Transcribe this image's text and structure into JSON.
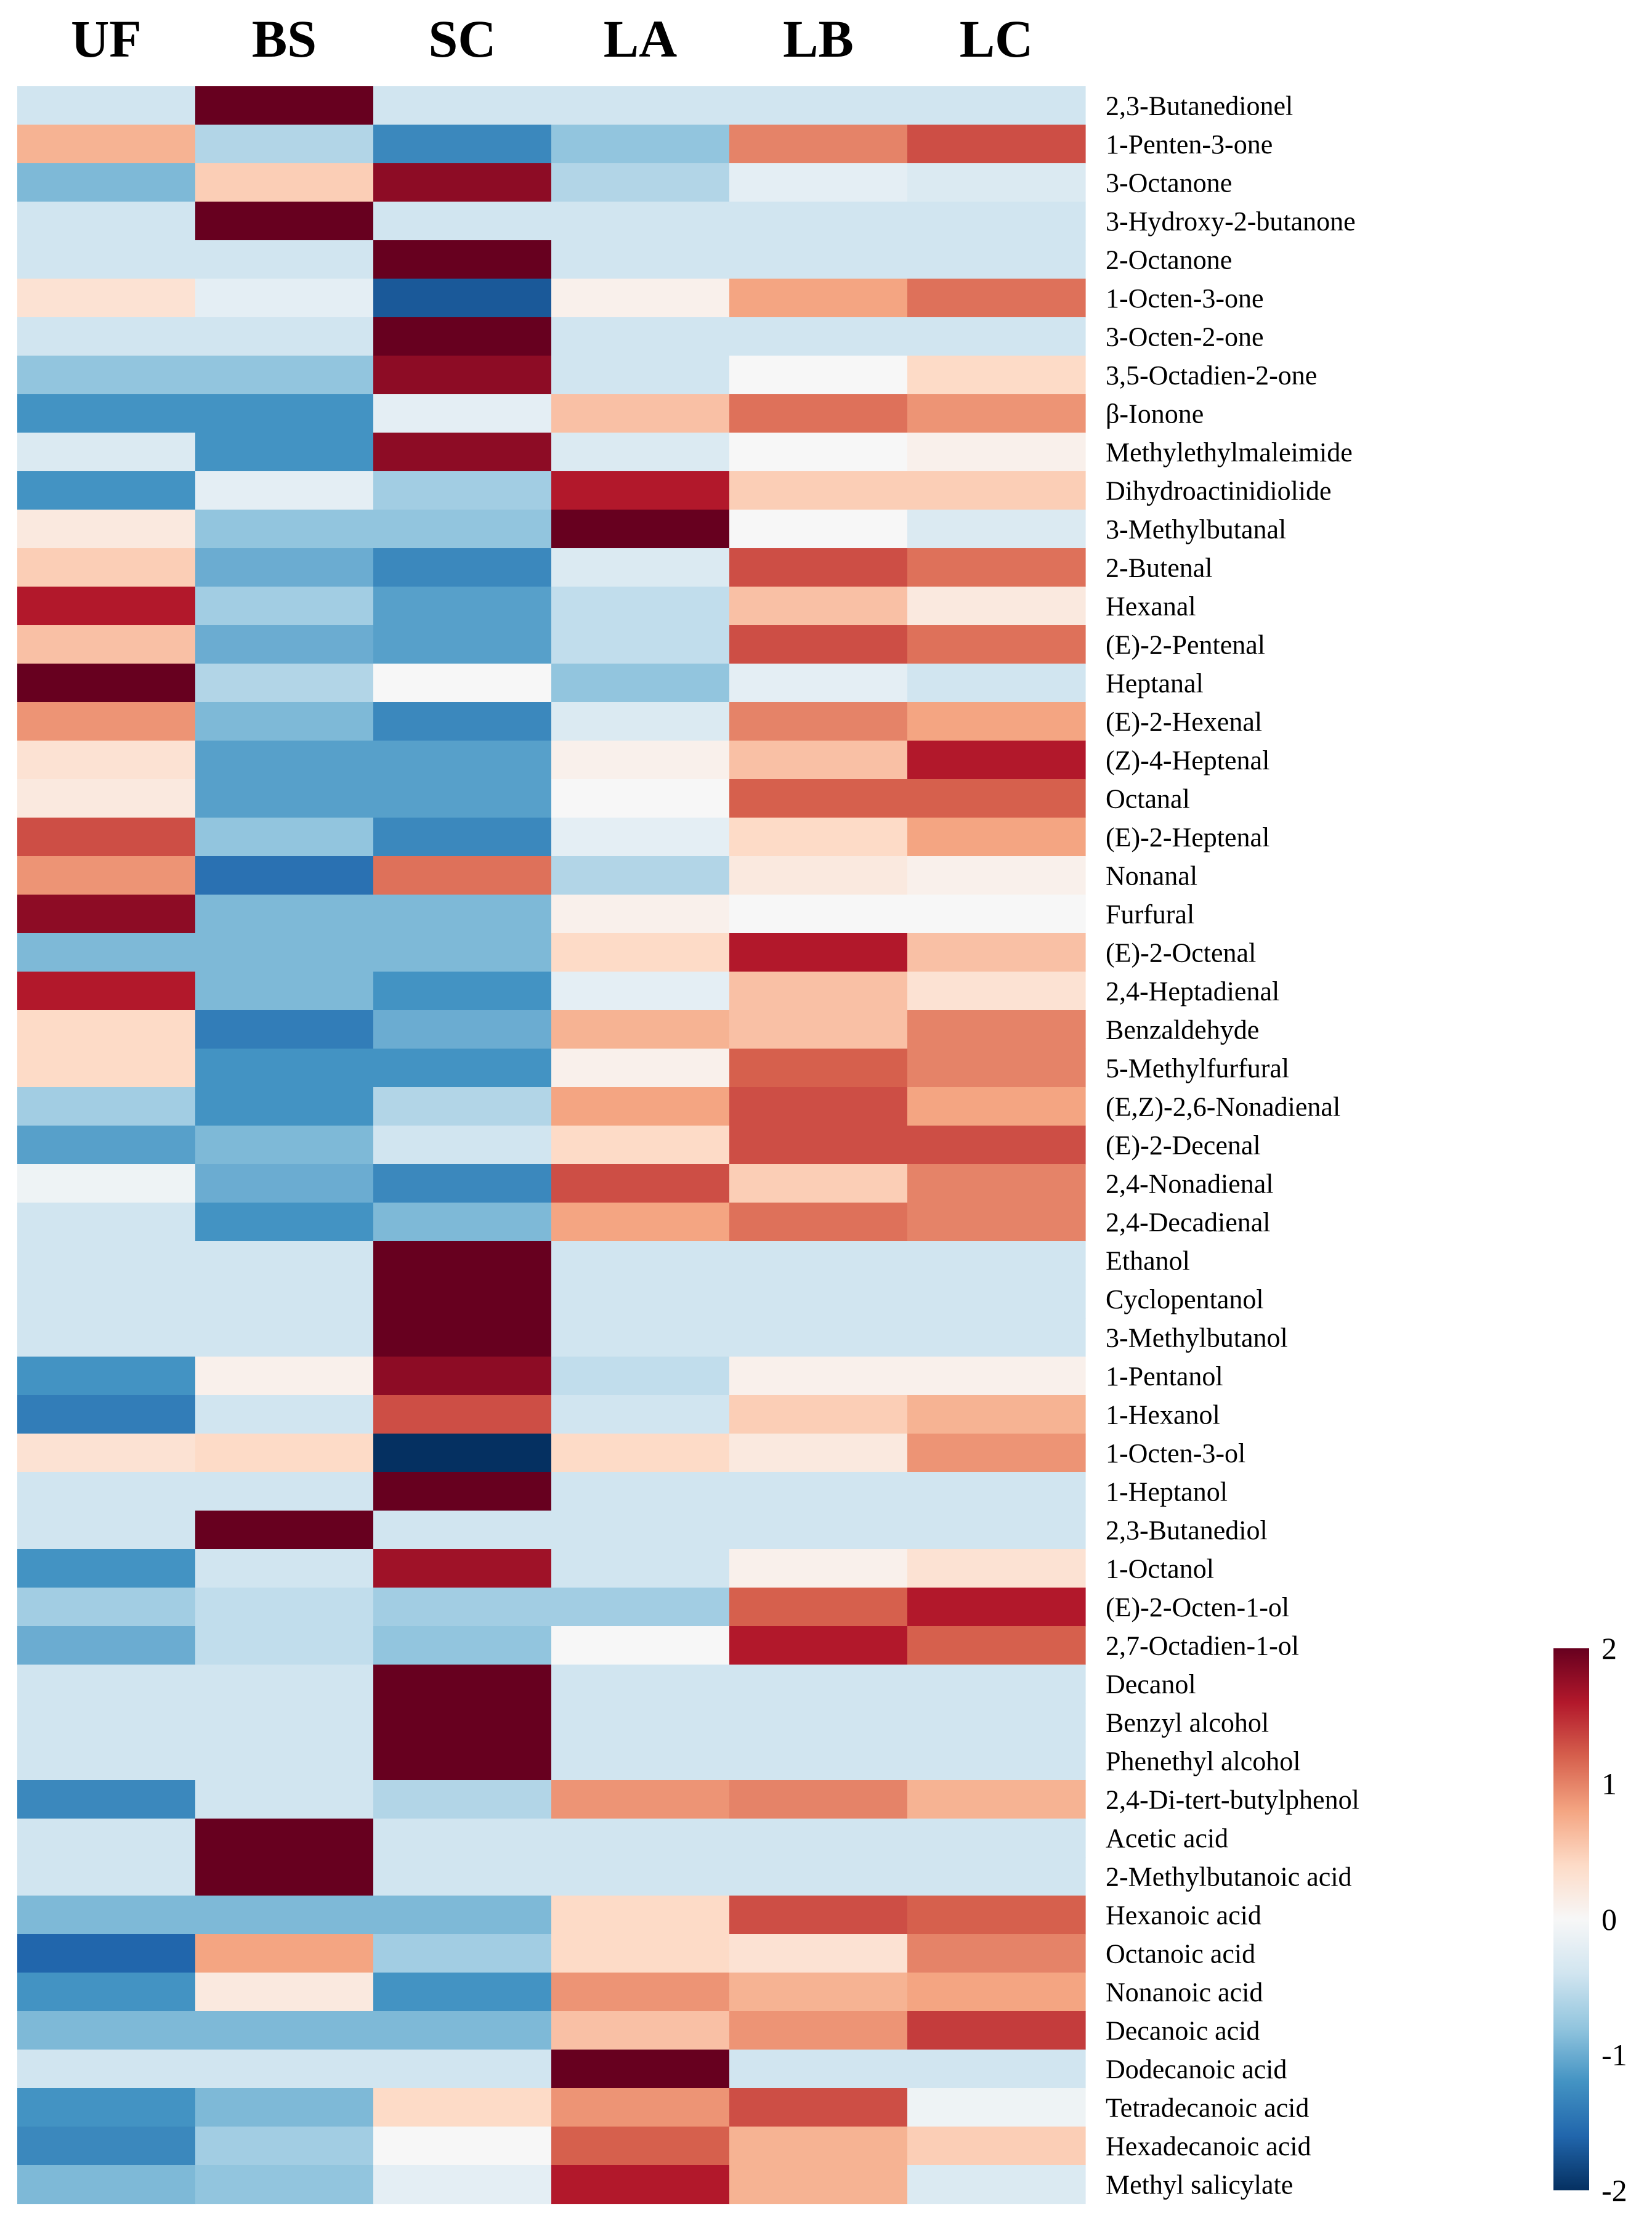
{
  "chart_data": {
    "type": "heatmap",
    "title": "",
    "columns": [
      "UF",
      "BS",
      "SC",
      "LA",
      "LB",
      "LC"
    ],
    "rows": [
      "2,3-Butanedionel",
      "1-Penten-3-one",
      "3-Octanone",
      "3-Hydroxy-2-butanone",
      "2-Octanone",
      "1-Octen-3-one",
      "3-Octen-2-one",
      "3,5-Octadien-2-one",
      "β-Ionone",
      "Methylethylmaleimide",
      "Dihydroactinidiolide",
      "3-Methylbutanal",
      "2-Butenal",
      "Hexanal",
      "(E)-2-Pentenal",
      "Heptanal",
      "(E)-2-Hexenal",
      "(Z)-4-Heptenal",
      "Octanal",
      "(E)-2-Heptenal",
      "Nonanal",
      "Furfural",
      "(E)-2-Octenal",
      "2,4-Heptadienal",
      "Benzaldehyde",
      "5-Methylfurfural",
      "(E,Z)-2,6-Nonadienal",
      "(E)-2-Decenal",
      "2,4-Nonadienal",
      "2,4-Decadienal",
      "Ethanol",
      "Cyclopentanol",
      "3-Methylbutanol",
      "1-Pentanol",
      "1-Hexanol",
      "1-Octen-3-ol",
      "1-Heptanol",
      "2,3-Butanediol",
      "1-Octanol",
      "(E)-2-Octen-1-ol",
      "2,7-Octadien-1-ol",
      "Decanol",
      "Benzyl alcohol",
      "Phenethyl alcohol",
      "2,4-Di-tert-butylphenol",
      "Acetic acid",
      "2-Methylbutanoic acid",
      "Hexanoic acid",
      "Octanoic acid",
      "Nonanoic acid",
      "Decanoic acid",
      "Dodecanoic acid",
      "Tetradecanoic acid",
      "Hexadecanoic acid",
      "Methyl salicylate"
    ],
    "values": [
      [
        -0.4,
        2.0,
        -0.4,
        -0.4,
        -0.4,
        -0.4
      ],
      [
        0.7,
        -0.6,
        -1.3,
        -0.8,
        1.0,
        1.3
      ],
      [
        -0.9,
        0.5,
        1.8,
        -0.6,
        -0.2,
        -0.3
      ],
      [
        -0.4,
        2.0,
        -0.4,
        -0.4,
        -0.4,
        -0.4
      ],
      [
        -0.4,
        -0.4,
        2.0,
        -0.4,
        -0.4,
        -0.4
      ],
      [
        0.3,
        -0.2,
        -1.7,
        0.1,
        0.8,
        1.1
      ],
      [
        -0.4,
        -0.4,
        2.0,
        -0.4,
        -0.4,
        -0.4
      ],
      [
        -0.8,
        -0.8,
        1.8,
        -0.4,
        0.0,
        0.4
      ],
      [
        -1.2,
        -1.2,
        -0.2,
        0.6,
        1.1,
        0.9
      ],
      [
        -0.3,
        -1.2,
        1.8,
        -0.3,
        0.0,
        0.1
      ],
      [
        -1.2,
        -0.2,
        -0.7,
        1.6,
        0.5,
        0.5
      ],
      [
        0.2,
        -0.8,
        -0.8,
        2.0,
        0.0,
        -0.3
      ],
      [
        0.5,
        -1.0,
        -1.3,
        -0.3,
        1.3,
        1.1
      ],
      [
        1.6,
        -0.7,
        -1.1,
        -0.5,
        0.6,
        0.2
      ],
      [
        0.6,
        -1.0,
        -1.1,
        -0.5,
        1.3,
        1.1
      ],
      [
        2.0,
        -0.6,
        0.0,
        -0.8,
        -0.2,
        -0.4
      ],
      [
        0.9,
        -0.9,
        -1.3,
        -0.3,
        1.0,
        0.8
      ],
      [
        0.3,
        -1.1,
        -1.1,
        0.1,
        0.6,
        1.6
      ],
      [
        0.2,
        -1.1,
        -1.1,
        0.0,
        1.2,
        1.2
      ],
      [
        1.3,
        -0.8,
        -1.3,
        -0.2,
        0.4,
        0.8
      ],
      [
        0.9,
        -1.5,
        1.1,
        -0.6,
        0.2,
        0.1
      ],
      [
        1.8,
        -0.9,
        -0.9,
        0.1,
        0.0,
        0.0
      ],
      [
        -0.9,
        -0.9,
        -0.9,
        0.4,
        1.6,
        0.6
      ],
      [
        1.6,
        -0.9,
        -1.2,
        -0.2,
        0.6,
        0.3
      ],
      [
        0.4,
        -1.4,
        -1.0,
        0.7,
        0.6,
        1.0
      ],
      [
        0.4,
        -1.2,
        -1.2,
        0.1,
        1.2,
        1.0
      ],
      [
        -0.7,
        -1.2,
        -0.6,
        0.8,
        1.3,
        0.8
      ],
      [
        -1.1,
        -0.9,
        -0.4,
        0.4,
        1.3,
        1.3
      ],
      [
        -0.1,
        -1.0,
        -1.3,
        1.3,
        0.5,
        1.0
      ],
      [
        -0.4,
        -1.2,
        -0.9,
        0.8,
        1.1,
        1.0
      ],
      [
        -0.4,
        -0.4,
        2.0,
        -0.4,
        -0.4,
        -0.4
      ],
      [
        -0.4,
        -0.4,
        2.0,
        -0.4,
        -0.4,
        -0.4
      ],
      [
        -0.4,
        -0.4,
        2.0,
        -0.4,
        -0.4,
        -0.4
      ],
      [
        -1.2,
        0.1,
        1.8,
        -0.5,
        0.1,
        0.1
      ],
      [
        -1.4,
        -0.4,
        1.3,
        -0.4,
        0.5,
        0.7
      ],
      [
        0.3,
        0.4,
        -2.0,
        0.4,
        0.2,
        0.9
      ],
      [
        -0.4,
        -0.4,
        2.0,
        -0.4,
        -0.4,
        -0.4
      ],
      [
        -0.4,
        2.0,
        -0.4,
        -0.4,
        -0.4,
        -0.4
      ],
      [
        -1.2,
        -0.4,
        1.7,
        -0.4,
        0.1,
        0.3
      ],
      [
        -0.7,
        -0.5,
        -0.7,
        -0.7,
        1.2,
        1.6
      ],
      [
        -1.0,
        -0.5,
        -0.8,
        0.0,
        1.6,
        1.2
      ],
      [
        -0.4,
        -0.4,
        2.0,
        -0.4,
        -0.4,
        -0.4
      ],
      [
        -0.4,
        -0.4,
        2.0,
        -0.4,
        -0.4,
        -0.4
      ],
      [
        -0.4,
        -0.4,
        2.0,
        -0.4,
        -0.4,
        -0.4
      ],
      [
        -1.3,
        -0.4,
        -0.6,
        0.9,
        1.0,
        0.7
      ],
      [
        -0.4,
        2.0,
        -0.4,
        -0.4,
        -0.4,
        -0.4
      ],
      [
        -0.4,
        2.0,
        -0.4,
        -0.4,
        -0.4,
        -0.4
      ],
      [
        -0.9,
        -0.9,
        -0.9,
        0.4,
        1.3,
        1.2
      ],
      [
        -1.6,
        0.8,
        -0.7,
        0.4,
        0.3,
        1.0
      ],
      [
        -1.2,
        0.2,
        -1.2,
        0.9,
        0.7,
        0.8
      ],
      [
        -0.9,
        -0.9,
        -0.9,
        0.6,
        0.9,
        1.4
      ],
      [
        -0.4,
        -0.4,
        -0.4,
        2.0,
        -0.4,
        -0.4
      ],
      [
        -1.2,
        -0.9,
        0.4,
        0.9,
        1.3,
        -0.1
      ],
      [
        -1.3,
        -0.7,
        0.0,
        1.2,
        0.7,
        0.5
      ],
      [
        -0.9,
        -0.8,
        -0.2,
        1.6,
        0.7,
        -0.3
      ]
    ],
    "colorbar": {
      "min": -2,
      "max": 2,
      "ticks": [
        "2",
        "1",
        "0",
        "-1",
        "-2"
      ],
      "tick_values": [
        2,
        1,
        0,
        -1,
        -2
      ],
      "colors": [
        "#053061",
        "#2166ac",
        "#4393c3",
        "#92c5de",
        "#d1e5f0",
        "#f7f7f7",
        "#fddbc7",
        "#f4a582",
        "#d6604d",
        "#b2182b",
        "#67001f"
      ]
    },
    "xlabel": "",
    "ylabel": ""
  }
}
